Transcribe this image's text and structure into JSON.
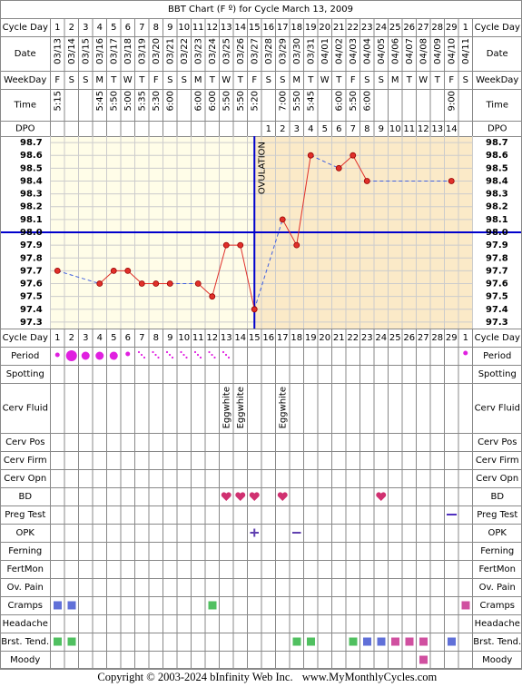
{
  "header": {
    "title": "BBT Chart (F º) for Cycle March 13, 2009"
  },
  "labels": {
    "cycle_day": "Cycle Day",
    "date": "Date",
    "weekday": "WeekDay",
    "time": "Time",
    "dpo": "DPO"
  },
  "cycle_days": [
    1,
    2,
    3,
    4,
    5,
    6,
    7,
    8,
    9,
    10,
    11,
    12,
    13,
    14,
    15,
    16,
    17,
    18,
    19,
    20,
    21,
    22,
    23,
    24,
    25,
    26,
    27,
    28,
    29,
    1
  ],
  "dates": [
    "03/13",
    "03/14",
    "03/15",
    "03/16",
    "03/17",
    "03/18",
    "03/19",
    "03/20",
    "03/21",
    "03/22",
    "03/23",
    "03/24",
    "03/25",
    "03/26",
    "03/27",
    "03/28",
    "03/29",
    "03/30",
    "03/31",
    "04/01",
    "04/02",
    "04/03",
    "04/04",
    "04/05",
    "04/06",
    "04/07",
    "04/08",
    "04/09",
    "04/10",
    "04/11"
  ],
  "weekdays": [
    "F",
    "S",
    "S",
    "M",
    "T",
    "W",
    "T",
    "F",
    "S",
    "S",
    "M",
    "T",
    "W",
    "T",
    "F",
    "S",
    "S",
    "M",
    "T",
    "W",
    "T",
    "F",
    "S",
    "S",
    "M",
    "T",
    "W",
    "T",
    "F",
    "S"
  ],
  "times": [
    "5:15",
    null,
    null,
    "5:45",
    "5:50",
    "5:00",
    "5:35",
    "5:30",
    "6:00",
    null,
    "6:00",
    "6:00",
    "5:50",
    "5:50",
    "5:20",
    null,
    "7:00",
    "5:50",
    "5:45",
    null,
    "6:00",
    "5:50",
    "6:00",
    null,
    null,
    null,
    null,
    null,
    "9:00",
    null
  ],
  "dpo": [
    null,
    null,
    null,
    null,
    null,
    null,
    null,
    null,
    null,
    null,
    null,
    null,
    null,
    null,
    null,
    1,
    2,
    3,
    4,
    5,
    6,
    7,
    8,
    9,
    10,
    11,
    12,
    13,
    14,
    null
  ],
  "chart_data": {
    "type": "line",
    "values": [
      97.7,
      null,
      null,
      97.6,
      97.7,
      97.7,
      97.6,
      97.6,
      97.6,
      null,
      97.6,
      97.5,
      97.9,
      97.9,
      97.4,
      null,
      98.1,
      97.9,
      98.6,
      null,
      98.5,
      98.6,
      98.4,
      null,
      null,
      null,
      null,
      null,
      98.4,
      null
    ],
    "color": "#e0302a",
    "ylim": [
      97.25,
      98.75
    ],
    "yticks": [
      98.7,
      98.6,
      98.5,
      98.4,
      98.3,
      98.2,
      98.1,
      {
        "value": 98,
        "label": "98.0"
      },
      97.9,
      97.8,
      97.7,
      97.6,
      97.5,
      97.4,
      97.3
    ],
    "grid": true,
    "coverline": 98,
    "coverline_color": "#0000cc",
    "ovulation_day": 15,
    "ovulation_label": "OVULATION"
  },
  "rows": [
    "Period",
    "Spotting",
    "Cerv Fluid",
    "Cerv Pos",
    "Cerv Firm",
    "Cerv Opn",
    "BD",
    "Preg Test",
    "OPK",
    "Ferning",
    "FertMon",
    "Ov. Pain",
    "Cramps",
    "Headache",
    "Brst. Tend.",
    "Moody"
  ],
  "cerv_fluid": [
    null,
    null,
    null,
    null,
    null,
    null,
    null,
    null,
    null,
    null,
    null,
    null,
    "Eggwhite",
    "Eggwhite",
    null,
    null,
    "Eggwhite",
    null,
    null,
    null,
    null,
    null,
    null,
    null,
    null,
    null,
    null,
    null,
    null,
    null
  ],
  "footer": {
    "copyright": "Copyright © 2003-2024 bInfinity Web Inc.",
    "site": "www.MyMonthlyCycles.com"
  }
}
